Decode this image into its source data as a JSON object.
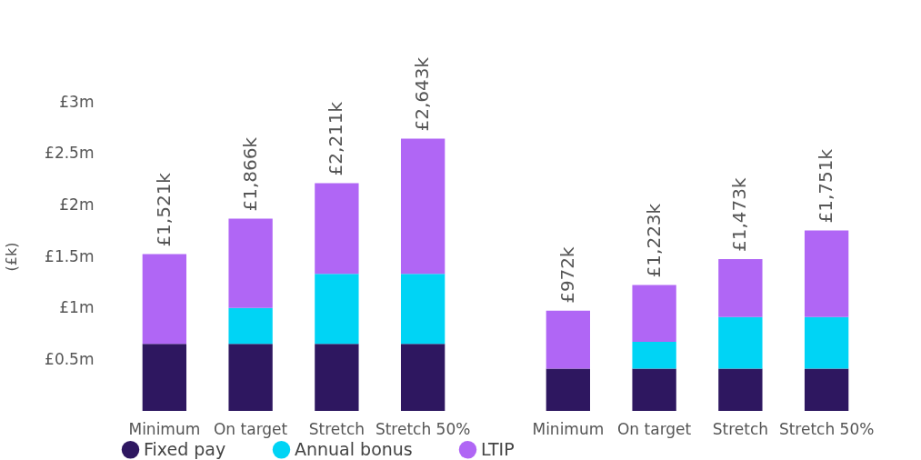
{
  "chart_data": [
    {
      "type": "bar",
      "stacked": true,
      "ylabel": "(£k)",
      "categories": [
        "Minimum",
        "On target",
        "Stretch",
        "Stretch 50%"
      ],
      "ylim": [
        0,
        3
      ],
      "yticks": [
        {
          "value": 0.5,
          "label": "£0.5m"
        },
        {
          "value": 1,
          "label": "£1m"
        },
        {
          "value": 1.5,
          "label": "£1.5m"
        },
        {
          "value": 2,
          "label": "£2m"
        },
        {
          "value": 2.5,
          "label": "£2.5m"
        },
        {
          "value": 3,
          "label": "£3m"
        }
      ],
      "legend": "bottom",
      "series": [
        {
          "name": "Fixed pay",
          "color": "#2e1760",
          "values": [
            0.65,
            0.65,
            0.65,
            0.65
          ]
        },
        {
          "name": "Annual bonus",
          "color": "#00d4f5",
          "values": [
            0,
            0.35,
            0.68,
            0.68
          ]
        },
        {
          "name": "LTIP",
          "color": "#b066f5",
          "values": [
            0.871,
            0.866,
            0.881,
            1.313
          ]
        }
      ],
      "totals": [
        "£1,521k",
        "£1,866k",
        "£2,211k",
        "£2,643k"
      ]
    },
    {
      "type": "bar",
      "stacked": true,
      "categories": [
        "Minimum",
        "On target",
        "Stretch",
        "Stretch 50%"
      ],
      "ylim": [
        0,
        3
      ],
      "tick_labels": "x",
      "legend": "bottom",
      "series": [
        {
          "name": "Fixed pay",
          "color": "#2e1760",
          "values": [
            0.41,
            0.41,
            0.41,
            0.41
          ]
        },
        {
          "name": "Annual bonus",
          "color": "#00d4f5",
          "values": [
            0,
            0.26,
            0.5,
            0.5
          ]
        },
        {
          "name": "LTIP",
          "color": "#b066f5",
          "values": [
            0.562,
            0.553,
            0.563,
            0.841
          ]
        }
      ],
      "totals": [
        "£972k",
        "£1,223k",
        "£1,473k",
        "£1,751k"
      ]
    }
  ]
}
